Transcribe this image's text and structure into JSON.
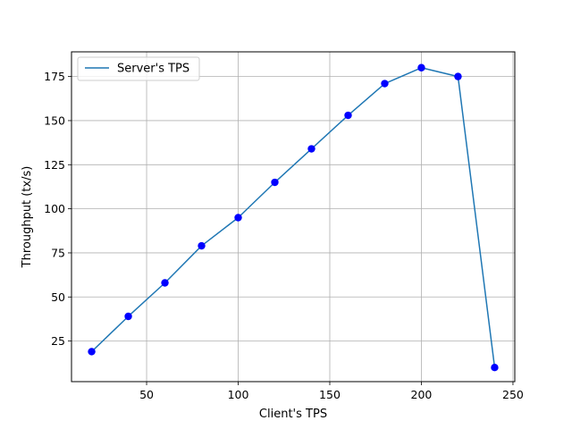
{
  "chart_data": {
    "type": "line",
    "title": "",
    "xlabel": "Client's TPS",
    "ylabel": "Throughput (tx/s)",
    "xlim": [
      9,
      251
    ],
    "ylim": [
      2,
      189
    ],
    "grid": true,
    "legend": {
      "placement": "top-left",
      "entries": [
        "Server's TPS"
      ]
    },
    "x_ticks": [
      50,
      100,
      150,
      200,
      250
    ],
    "y_ticks": [
      25,
      50,
      75,
      100,
      125,
      150,
      175
    ],
    "series": [
      {
        "name": "Server's TPS",
        "line_color": "#1f77b4",
        "marker_color": "#0000ff",
        "x": [
          20,
          40,
          60,
          80,
          100,
          120,
          140,
          160,
          180,
          200,
          220,
          240
        ],
        "y": [
          19,
          39,
          58,
          79,
          95,
          115,
          134,
          153,
          171,
          180,
          175,
          10
        ]
      }
    ]
  }
}
